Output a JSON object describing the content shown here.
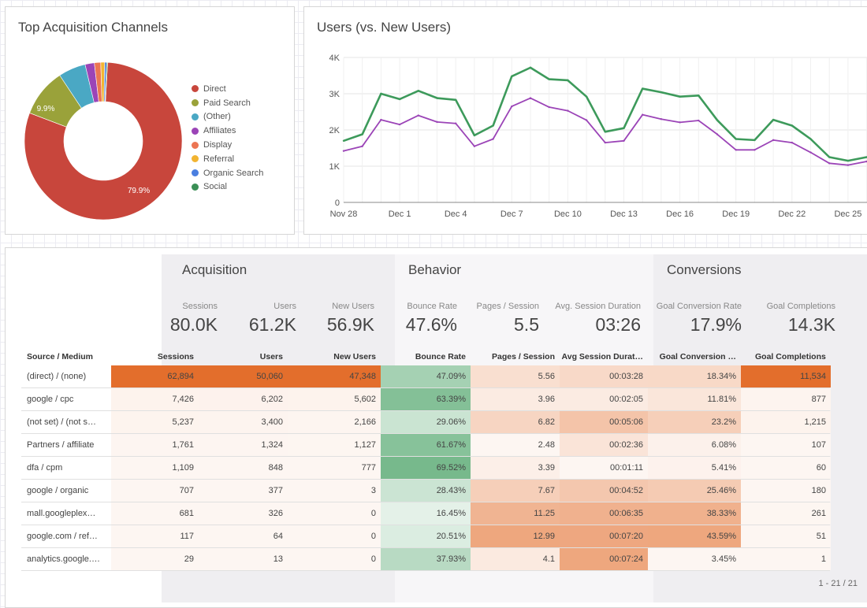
{
  "donut": {
    "title": "Top Acquisition Channels",
    "legend": [
      {
        "label": "Direct",
        "color": "#c8463c"
      },
      {
        "label": "Paid Search",
        "color": "#9aa23a"
      },
      {
        "label": "(Other)",
        "color": "#4aa8c4"
      },
      {
        "label": "Affiliates",
        "color": "#9b44b7"
      },
      {
        "label": "Display",
        "color": "#ec7553"
      },
      {
        "label": "Referral",
        "color": "#f2b431"
      },
      {
        "label": "Organic Search",
        "color": "#4a7fe0"
      },
      {
        "label": "Social",
        "color": "#3b8f56"
      }
    ],
    "label_direct": "79.9%",
    "label_paid": "9.9%"
  },
  "chart_data": [
    {
      "type": "pie",
      "title": "Top Acquisition Channels",
      "categories": [
        "Direct",
        "Paid Search",
        "(Other)",
        "Affiliates",
        "Display",
        "Referral",
        "Organic Search",
        "Social"
      ],
      "values": [
        79.9,
        9.9,
        5.6,
        1.9,
        1.3,
        0.8,
        0.4,
        0.2
      ]
    },
    {
      "type": "line",
      "title": "Users (vs. New Users)",
      "x": [
        "Nov 28",
        "Nov 29",
        "Nov 30",
        "Dec 1",
        "Dec 2",
        "Dec 3",
        "Dec 4",
        "Dec 5",
        "Dec 6",
        "Dec 7",
        "Dec 8",
        "Dec 9",
        "Dec 10",
        "Dec 11",
        "Dec 12",
        "Dec 13",
        "Dec 14",
        "Dec 15",
        "Dec 16",
        "Dec 17",
        "Dec 18",
        "Dec 19",
        "Dec 20",
        "Dec 21",
        "Dec 22",
        "Dec 23",
        "Dec 24",
        "Dec 25",
        "Dec 26"
      ],
      "x_ticks": [
        "Nov 28",
        "Dec 1",
        "Dec 4",
        "Dec 7",
        "Dec 10",
        "Dec 13",
        "Dec 16",
        "Dec 19",
        "Dec 22",
        "Dec 25"
      ],
      "y_ticks": [
        "0",
        "1K",
        "2K",
        "3K",
        "4K"
      ],
      "ylim": [
        0,
        4000
      ],
      "series": [
        {
          "color": "#3d9a5b",
          "values": [
            1700,
            1880,
            3000,
            2850,
            3080,
            2880,
            2830,
            1850,
            2120,
            3480,
            3720,
            3400,
            3370,
            2920,
            1950,
            2050,
            3140,
            3040,
            2920,
            2950,
            2270,
            1750,
            1720,
            2280,
            2120,
            1750,
            1250,
            1150,
            1250
          ]
        },
        {
          "color": "#9b44b7",
          "values": [
            1420,
            1550,
            2280,
            2150,
            2400,
            2220,
            2180,
            1550,
            1750,
            2650,
            2880,
            2630,
            2530,
            2270,
            1650,
            1700,
            2420,
            2300,
            2210,
            2260,
            1880,
            1450,
            1450,
            1720,
            1650,
            1380,
            1080,
            1030,
            1130
          ]
        }
      ]
    }
  ],
  "line": {
    "title": "Users (vs. New Users)"
  },
  "table": {
    "groups": {
      "acquisition": "Acquisition",
      "behavior": "Behavior",
      "conversions": "Conversions"
    },
    "kpis": [
      {
        "label": "Sessions",
        "value": "80.0K"
      },
      {
        "label": "Users",
        "value": "61.2K"
      },
      {
        "label": "New Users",
        "value": "56.9K"
      },
      {
        "label": "Bounce Rate",
        "value": "47.6%"
      },
      {
        "label": "Pages / Session",
        "value": "5.5"
      },
      {
        "label": "Avg. Session Duration",
        "value": "03:26"
      },
      {
        "label": "Goal Conversion Rate",
        "value": "17.9%"
      },
      {
        "label": "Goal Completions",
        "value": "14.3K"
      }
    ],
    "headers": [
      "Source / Medium",
      "Sessions",
      "Users",
      "New Users",
      "Bounce Rate",
      "Pages / Session",
      "Avg Session Durat…",
      "Goal Conversion …",
      "Goal Completions"
    ],
    "rows": [
      [
        "(direct) / (none)",
        "62,894",
        "50,060",
        "47,348",
        "47.09%",
        "5.56",
        "00:03:28",
        "18.34%",
        "11,534"
      ],
      [
        "google / cpc",
        "7,426",
        "6,202",
        "5,602",
        "63.39%",
        "3.96",
        "00:02:05",
        "11.81%",
        "877"
      ],
      [
        "(not set) / (not s…",
        "5,237",
        "3,400",
        "2,166",
        "29.06%",
        "6.82",
        "00:05:06",
        "23.2%",
        "1,215"
      ],
      [
        "Partners / affiliate",
        "1,761",
        "1,324",
        "1,127",
        "61.67%",
        "2.48",
        "00:02:36",
        "6.08%",
        "107"
      ],
      [
        "dfa / cpm",
        "1,109",
        "848",
        "777",
        "69.52%",
        "3.39",
        "00:01:11",
        "5.41%",
        "60"
      ],
      [
        "google / organic",
        "707",
        "377",
        "3",
        "28.43%",
        "7.67",
        "00:04:52",
        "25.46%",
        "180"
      ],
      [
        "mall.googleplex…",
        "681",
        "326",
        "0",
        "16.45%",
        "11.25",
        "00:06:35",
        "38.33%",
        "261"
      ],
      [
        "google.com / ref…",
        "117",
        "64",
        "0",
        "20.51%",
        "12.99",
        "00:07:20",
        "43.59%",
        "51"
      ],
      [
        "analytics.google.…",
        "29",
        "13",
        "0",
        "37.93%",
        "4.1",
        "00:07:24",
        "3.45%",
        "1"
      ]
    ],
    "pager": "1 - 21 / 21"
  }
}
